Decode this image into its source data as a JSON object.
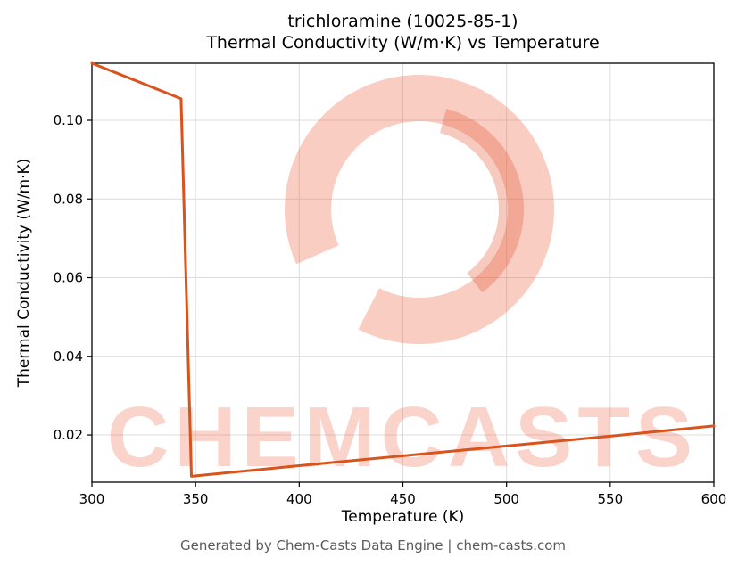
{
  "header": {
    "title_line1": "trichloramine (10025-85-1)",
    "title_line2": "Thermal Conductivity (W/m·K) vs Temperature"
  },
  "watermark": {
    "text": "CHEMCASTS",
    "logo": "chemcasts-brush-ring-logo",
    "color": "#ee6544"
  },
  "footer": {
    "text": "Generated by Chem-Casts Data Engine | chem-casts.com"
  },
  "chart_data": {
    "type": "line",
    "title": "trichloramine (10025-85-1) Thermal Conductivity (W/m·K) vs Temperature",
    "xlabel": "Temperature (K)",
    "ylabel": "Thermal Conductivity (W/m·K)",
    "xlim": [
      300,
      600
    ],
    "ylim": [
      0.008,
      0.1145
    ],
    "xticks": [
      300,
      350,
      400,
      450,
      500,
      550,
      600
    ],
    "yticks": [
      0.02,
      0.04,
      0.06,
      0.08,
      0.1
    ],
    "grid": true,
    "legend": "none",
    "line_color": "#d9531d",
    "line_width": 3,
    "series": [
      {
        "name": "thermal-conductivity",
        "x": [
          300,
          343,
          348,
          400,
          450,
          500,
          550,
          600
        ],
        "y": [
          0.1145,
          0.1055,
          0.0095,
          0.0122,
          0.0147,
          0.0172,
          0.0197,
          0.0223
        ]
      }
    ]
  }
}
